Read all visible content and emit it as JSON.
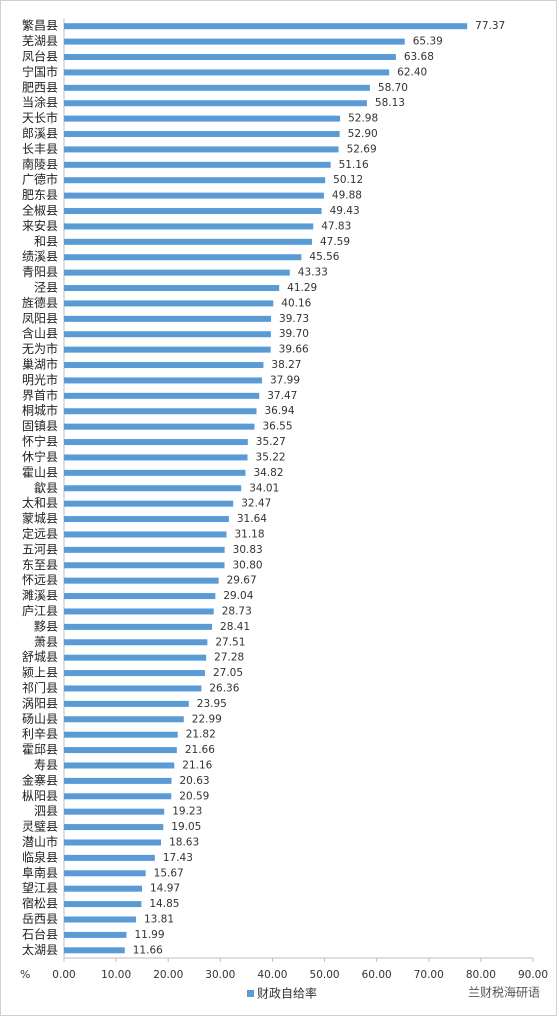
{
  "chart_data": {
    "type": "hbar",
    "categories": [
      "繁昌县",
      "芜湖县",
      "凤台县",
      "宁国市",
      "肥西县",
      "当涂县",
      "天长市",
      "郎溪县",
      "长丰县",
      "南陵县",
      "广德市",
      "肥东县",
      "全椒县",
      "来安县",
      "和县",
      "绩溪县",
      "青阳县",
      "泾县",
      "旌德县",
      "凤阳县",
      "含山县",
      "无为市",
      "巢湖市",
      "明光市",
      "界首市",
      "桐城市",
      "固镇县",
      "怀宁县",
      "休宁县",
      "霍山县",
      "歙县",
      "太和县",
      "蒙城县",
      "定远县",
      "五河县",
      "东至县",
      "怀远县",
      "濉溪县",
      "庐江县",
      "黟县",
      "萧县",
      "舒城县",
      "颍上县",
      "祁门县",
      "涡阳县",
      "砀山县",
      "利辛县",
      "霍邱县",
      "寿县",
      "金寨县",
      "枞阳县",
      "泗县",
      "灵璧县",
      "潜山市",
      "临泉县",
      "阜南县",
      "望江县",
      "宿松县",
      "岳西县",
      "石台县",
      "太湖县"
    ],
    "series": [
      {
        "name": "财政自给率",
        "color": "#5b9bd5",
        "values": [
          77.37,
          65.39,
          63.68,
          62.4,
          58.7,
          58.13,
          52.98,
          52.9,
          52.69,
          51.16,
          50.12,
          49.88,
          49.43,
          47.83,
          47.59,
          45.56,
          43.33,
          41.29,
          40.16,
          39.73,
          39.7,
          39.66,
          38.27,
          37.99,
          37.47,
          36.94,
          36.55,
          35.27,
          35.22,
          34.82,
          34.01,
          32.47,
          31.64,
          31.18,
          30.83,
          30.8,
          29.67,
          29.04,
          28.73,
          28.41,
          27.51,
          27.28,
          27.05,
          26.36,
          23.95,
          22.99,
          21.82,
          21.66,
          21.16,
          20.63,
          20.59,
          19.23,
          19.05,
          18.63,
          17.43,
          15.67,
          14.97,
          14.85,
          13.81,
          11.99,
          11.66
        ],
        "value_labels": [
          "77.37",
          "65.39",
          "63.68",
          "62.40",
          "58.70",
          "58.13",
          "52.98",
          "52.90",
          "52.69",
          "51.16",
          "50.12",
          "49.88",
          "49.43",
          "47.83",
          "47.59",
          "45.56",
          "43.33",
          "41.29",
          "40.16",
          "39.73",
          "39.70",
          "39.66",
          "38.27",
          "37.99",
          "37.47",
          "36.94",
          "36.55",
          "35.27",
          "35.22",
          "34.82",
          "34.01",
          "32.47",
          "31.64",
          "31.18",
          "30.83",
          "30.80",
          "29.67",
          "29.04",
          "28.73",
          "28.41",
          "27.51",
          "27.28",
          "27.05",
          "26.36",
          "23.95",
          "22.99",
          "21.82",
          "21.66",
          "21.16",
          "20.63",
          "20.59",
          "19.23",
          "19.05",
          "18.63",
          "17.43",
          "15.67",
          "14.97",
          "14.85",
          "13.81",
          "11.99",
          "11.66"
        ]
      }
    ],
    "xlim": [
      0,
      90
    ],
    "xticks": [
      {
        "value": 0,
        "label": "0.00"
      },
      {
        "value": 10,
        "label": "10.00"
      },
      {
        "value": 20,
        "label": "20.00"
      },
      {
        "value": 30,
        "label": "30.00"
      },
      {
        "value": 40,
        "label": "40.00"
      },
      {
        "value": 50,
        "label": "50.00"
      },
      {
        "value": 60,
        "label": "60.00"
      },
      {
        "value": 70,
        "label": "70.00"
      },
      {
        "value": 80,
        "label": "80.00"
      },
      {
        "value": 90,
        "label": "90.00"
      }
    ],
    "x_unit": "%",
    "watermark": "兰财税海研语",
    "legend": "bottom"
  }
}
